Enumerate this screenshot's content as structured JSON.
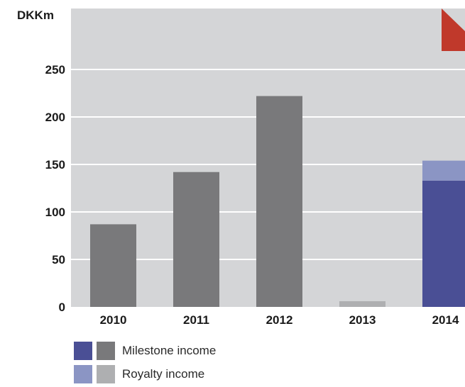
{
  "chart_data": {
    "type": "bar",
    "stacked": true,
    "unit_label": "DKKm",
    "categories": [
      "2010",
      "2011",
      "2012",
      "2013",
      "2014"
    ],
    "series": [
      {
        "name": "Milestone income",
        "values": [
          87,
          142,
          222,
          0,
          133
        ],
        "colors": [
          "#79797b",
          "#79797b",
          "#79797b",
          "#79797b",
          "#4a4f95"
        ]
      },
      {
        "name": "Royalty income",
        "values": [
          0,
          0,
          0,
          6,
          21
        ],
        "colors": [
          "#aeafb1",
          "#aeafb1",
          "#aeafb1",
          "#aeafb1",
          "#8b95c4"
        ]
      }
    ],
    "yticks": [
      0,
      50,
      100,
      150,
      200,
      250
    ],
    "ylim": [
      0,
      315
    ],
    "grid": true,
    "legend_position": "bottom-left"
  },
  "colors": {
    "plot_background": "#d4d5d7",
    "gridline": "#ffffff",
    "accent": "#c0392b"
  },
  "legend": [
    {
      "label": "Milestone income",
      "swatches": [
        "#4a4f95",
        "#79797b"
      ]
    },
    {
      "label": "Royalty income",
      "swatches": [
        "#8b95c4",
        "#aeafb1"
      ]
    }
  ]
}
